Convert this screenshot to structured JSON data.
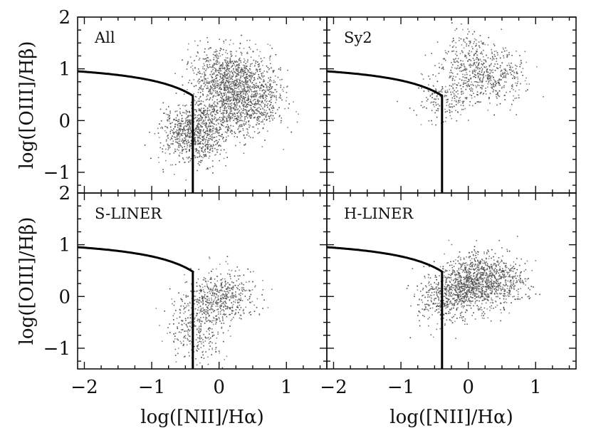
{
  "chart_data": {
    "type": "scatter",
    "layout": "2x2 grid with shared axes",
    "x_axis": {
      "label": "log([NII]/Hα)",
      "range": [
        -2.1,
        1.6
      ],
      "ticks": [
        "−2",
        "−1",
        "0",
        "1"
      ],
      "tick_values": [
        -2,
        -1,
        0,
        1
      ]
    },
    "y_axis": {
      "label": "log([OIII]/Hβ)",
      "range": [
        -1.4,
        2.0
      ],
      "ticks": [
        "−1",
        "0",
        "1",
        "2"
      ],
      "tick_values": [
        -1,
        0,
        1,
        2
      ]
    },
    "demarcation": {
      "formula": "y = 0.61/(x - 0.47) + 1.19",
      "x_max": -0.39,
      "vertical_line_x": -0.39
    },
    "point_color": "#333333",
    "panels": [
      {
        "label": "All",
        "point_density": "very dense",
        "points": [
          {
            "x": -0.15,
            "y": 0.05
          },
          {
            "x": 0.1,
            "y": 0.6
          },
          {
            "x": 0.3,
            "y": 0.2
          },
          {
            "x": -0.3,
            "y": -0.4
          },
          {
            "x": -0.05,
            "y": 1.0
          },
          {
            "x": 0.4,
            "y": 0.9
          },
          {
            "x": -0.5,
            "y": -0.2
          },
          {
            "x": 0.6,
            "y": 0.4
          }
        ]
      },
      {
        "label": "Sy2",
        "point_density": "moderate",
        "points": [
          {
            "x": -0.05,
            "y": 0.75
          },
          {
            "x": 0.3,
            "y": 1.0
          },
          {
            "x": -0.35,
            "y": 0.4
          },
          {
            "x": 0.5,
            "y": 0.8
          },
          {
            "x": 0.0,
            "y": 1.3
          }
        ]
      },
      {
        "label": "S-LINER",
        "point_density": "moderate",
        "points": [
          {
            "x": -0.3,
            "y": -0.35
          },
          {
            "x": -0.15,
            "y": -0.05
          },
          {
            "x": 0.0,
            "y": 0.1
          },
          {
            "x": -0.35,
            "y": -0.8
          },
          {
            "x": 0.2,
            "y": 0.0
          }
        ]
      },
      {
        "label": "H-LINER",
        "point_density": "dense",
        "points": [
          {
            "x": -0.05,
            "y": 0.1
          },
          {
            "x": 0.2,
            "y": 0.25
          },
          {
            "x": -0.4,
            "y": -0.05
          },
          {
            "x": 0.5,
            "y": 0.3
          },
          {
            "x": 0.0,
            "y": 0.45
          }
        ]
      }
    ]
  }
}
